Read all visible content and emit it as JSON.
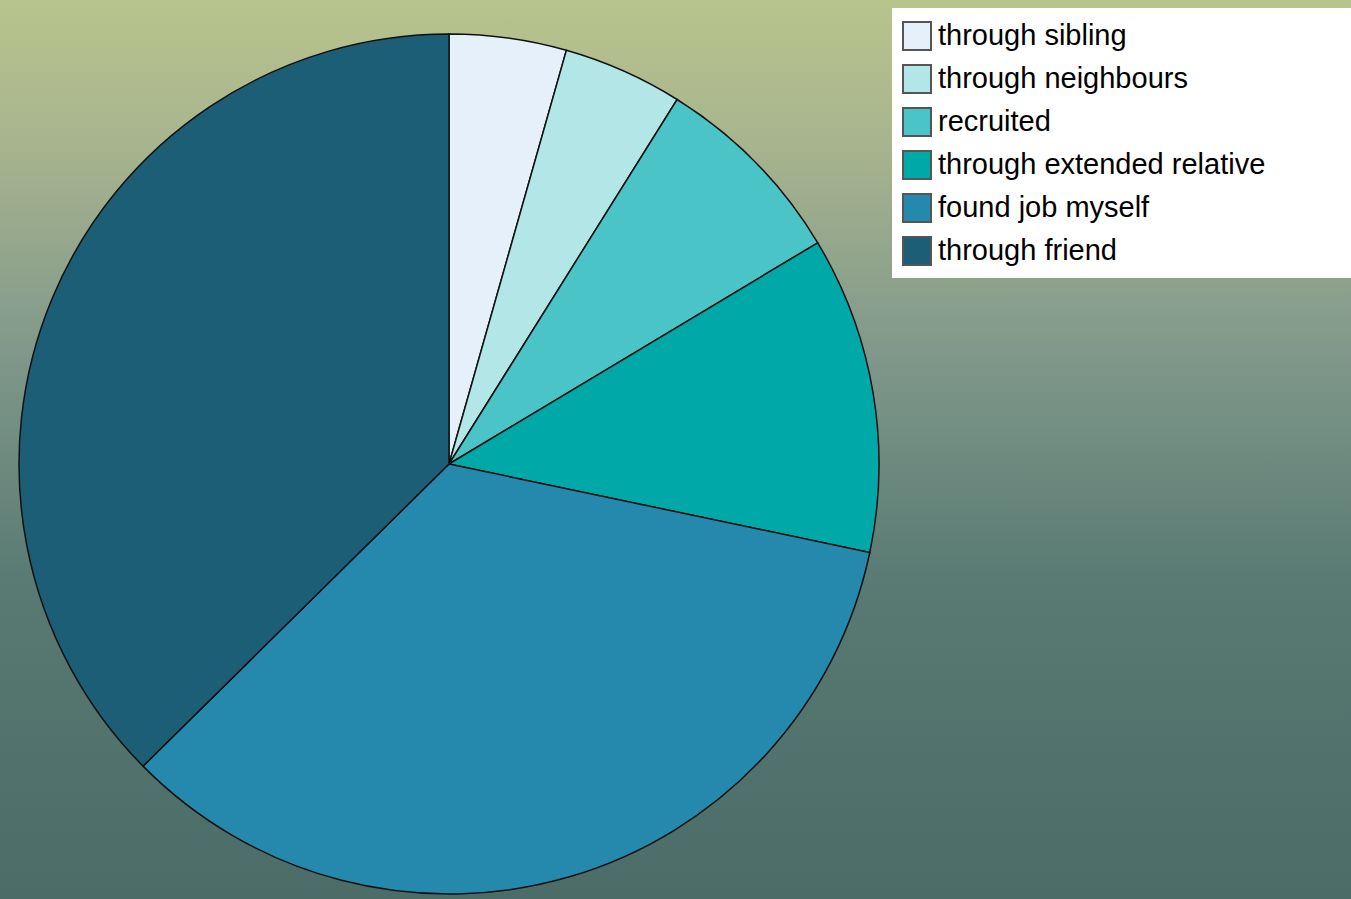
{
  "chart_data": {
    "type": "pie",
    "categories": [
      "through sibling",
      "through neighbours",
      "recruited",
      "through extended relative",
      "found job myself",
      "through friend"
    ],
    "values": [
      4.4,
      4.5,
      7.5,
      11.9,
      34.3,
      37.4
    ],
    "colors": [
      "#e6f0fb",
      "#b3e6e6",
      "#4bc4c8",
      "#00a8a8",
      "#2589ae",
      "#1b5e75"
    ],
    "legend": "top-right"
  }
}
